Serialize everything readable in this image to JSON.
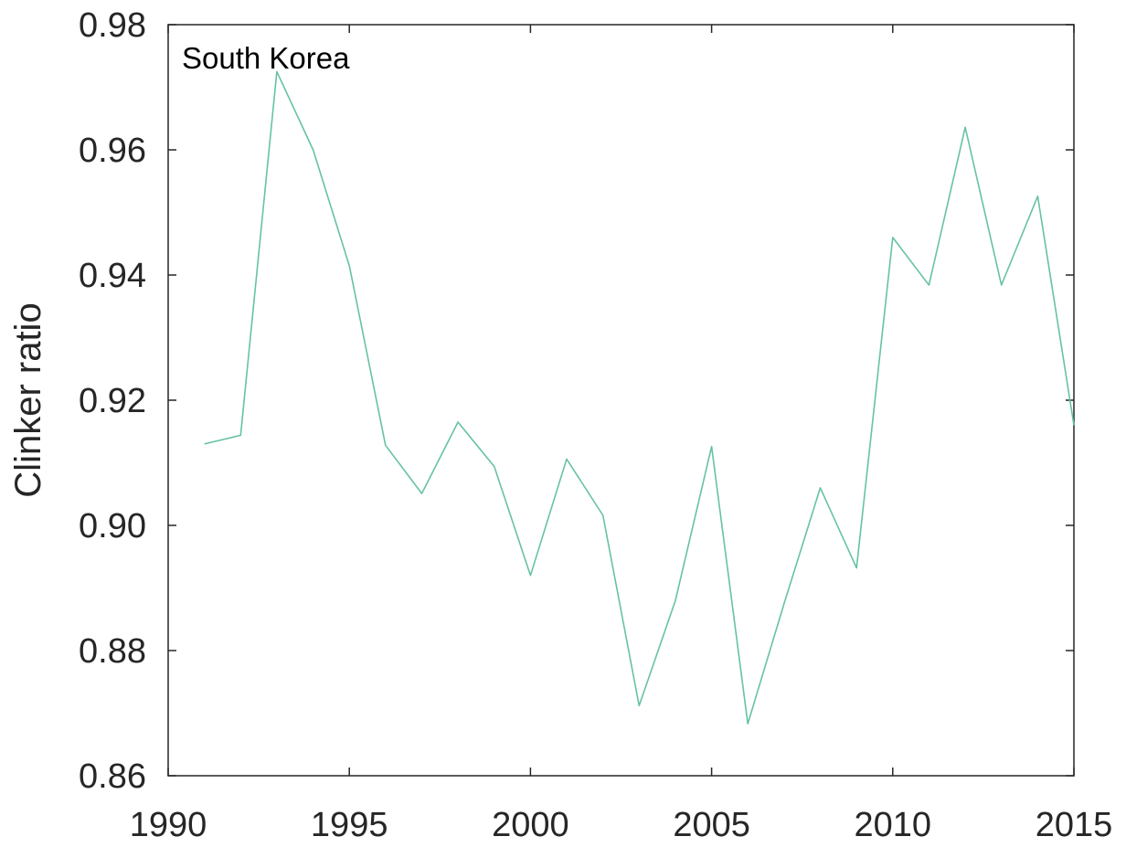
{
  "chart_data": {
    "type": "line",
    "title": "",
    "annotation": "South Korea",
    "xlabel": "",
    "ylabel": "Clinker ratio",
    "xlim": [
      1990,
      2015
    ],
    "ylim": [
      0.86,
      0.98
    ],
    "xticks": [
      "1990",
      "1995",
      "2000",
      "2005",
      "2010",
      "2015"
    ],
    "yticks": [
      "0.86",
      "0.88",
      "0.90",
      "0.92",
      "0.94",
      "0.96",
      "0.98"
    ],
    "grid": false,
    "legend": "none",
    "series": [
      {
        "color": "#66c2a5",
        "x": [
          1991,
          1992,
          1993,
          1994,
          1995,
          1996,
          1997,
          1998,
          1999,
          2000,
          2001,
          2002,
          2003,
          2004,
          2005,
          2006,
          2007,
          2008,
          2009,
          2010,
          2011,
          2012,
          2013,
          2014,
          2015
        ],
        "y": [
          0.913,
          0.9144,
          0.9725,
          0.96,
          0.9415,
          0.9128,
          0.9051,
          0.9165,
          0.9094,
          0.892,
          0.9106,
          0.9016,
          0.8712,
          0.888,
          0.9126,
          0.8683,
          0.8875,
          0.906,
          0.8932,
          0.946,
          0.9384,
          0.9636,
          0.9384,
          0.9526,
          0.916
        ]
      }
    ]
  }
}
